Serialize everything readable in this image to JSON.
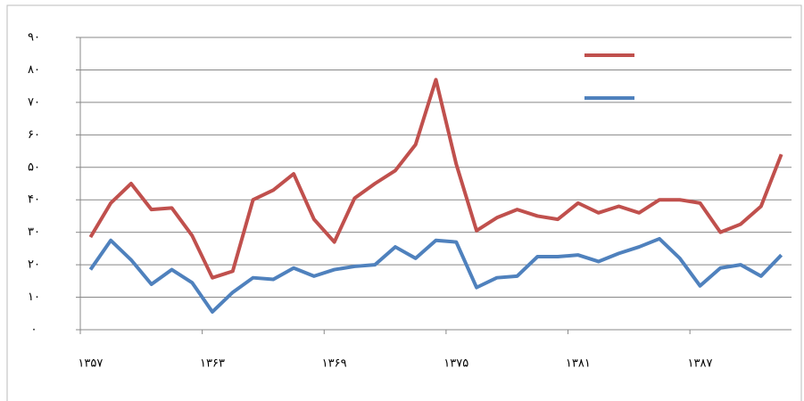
{
  "chart_data": {
    "type": "line",
    "categories": [
      "۱۳۵۷",
      null,
      null,
      null,
      null,
      null,
      "۱۳۶۳",
      null,
      null,
      null,
      null,
      null,
      "۱۳۶۹",
      null,
      null,
      null,
      null,
      null,
      "۱۳۷۵",
      null,
      null,
      null,
      null,
      null,
      "۱۳۸۱",
      null,
      null,
      null,
      null,
      null,
      "۱۳۸۷",
      null,
      null,
      null,
      null
    ],
    "series": [
      {
        "color": "#c0504d",
        "values": [
          28.5,
          39,
          45,
          37,
          37.5,
          29,
          16,
          18,
          40,
          43,
          48,
          34,
          27,
          40.5,
          45,
          49,
          57,
          77,
          51,
          30.5,
          34.5,
          37,
          35,
          34,
          39,
          36,
          38,
          36,
          40,
          40,
          39,
          30,
          32.5,
          38,
          54
        ]
      },
      {
        "color": "#4f81bd",
        "values": [
          18.5,
          27.5,
          21.5,
          14,
          18.5,
          14.5,
          5.5,
          11.5,
          16,
          15.5,
          19,
          16.5,
          18.5,
          19.5,
          20,
          25.5,
          22,
          27.5,
          27,
          13,
          16,
          16.5,
          22.5,
          22.5,
          23,
          21,
          23.5,
          25.5,
          28,
          22,
          13.5,
          19,
          20,
          16.5,
          23
        ]
      }
    ],
    "ylim": [
      0,
      90
    ],
    "yticks": [
      {
        "value": 0,
        "label": "۰"
      },
      {
        "value": 10,
        "label": "۱۰"
      },
      {
        "value": 20,
        "label": "۲۰"
      },
      {
        "value": 30,
        "label": "۳۰"
      },
      {
        "value": 40,
        "label": "۴۰"
      },
      {
        "value": 50,
        "label": "۵۰"
      },
      {
        "value": 60,
        "label": "۶۰"
      },
      {
        "value": 70,
        "label": "۷۰"
      },
      {
        "value": 80,
        "label": "۸۰"
      },
      {
        "value": 90,
        "label": "۹۰"
      }
    ],
    "grid": true
  }
}
